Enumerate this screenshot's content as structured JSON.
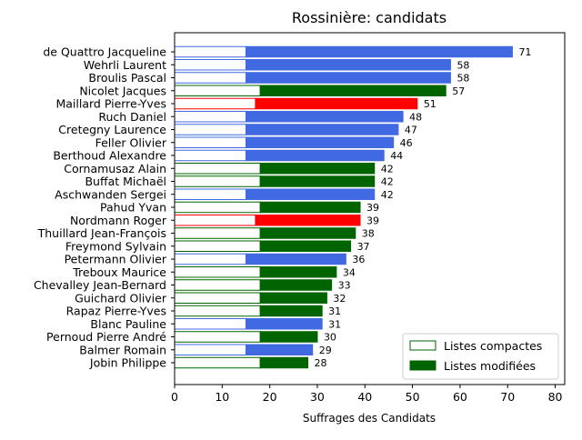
{
  "chart_data": {
    "type": "bar",
    "orientation": "horizontal",
    "stacked": true,
    "title": "Rossinière: candidats",
    "xlabel": "Suffrages des Candidats",
    "ylabel": "",
    "xlim": [
      0,
      82
    ],
    "xticks": [
      0,
      10,
      20,
      30,
      40,
      50,
      60,
      70,
      80
    ],
    "grid": false,
    "legend": {
      "position": "bottom-right",
      "entries": [
        {
          "label": "Listes compactes",
          "style": "outline",
          "color": "#006400"
        },
        {
          "label": "Listes modifiées",
          "style": "filled",
          "color": "#006400"
        }
      ]
    },
    "categories": [
      "de Quattro Jacqueline",
      "Wehrli Laurent",
      "Broulis Pascal",
      "Nicolet Jacques",
      "Maillard Pierre-Yves",
      "Ruch Daniel",
      "Cretegny Laurence",
      "Feller Olivier",
      "Berthoud Alexandre",
      "Cornamusaz Alain",
      "Buffat Michaël",
      "Aschwanden Sergei",
      "Pahud Yvan",
      "Nordmann Roger",
      "Thuillard Jean-François",
      "Freymond Sylvain",
      "Petermann Olivier",
      "Treboux Maurice",
      "Chevalley Jean-Bernard",
      "Guichard Olivier",
      "Rapaz Pierre-Yves",
      "Blanc Pauline",
      "Pernoud Pierre André",
      "Balmer Romain",
      "Jobin Philippe"
    ],
    "series": [
      {
        "name": "Listes compactes",
        "values": [
          15,
          15,
          15,
          18,
          17,
          15,
          15,
          15,
          15,
          18,
          18,
          15,
          18,
          17,
          18,
          18,
          15,
          18,
          18,
          18,
          18,
          15,
          18,
          15,
          18
        ]
      },
      {
        "name": "Listes modifiées",
        "values": [
          56,
          43,
          43,
          39,
          34,
          33,
          32,
          31,
          29,
          24,
          24,
          27,
          21,
          22,
          20,
          19,
          21,
          16,
          15,
          14,
          13,
          16,
          12,
          14,
          10
        ]
      }
    ],
    "totals": [
      71,
      58,
      58,
      57,
      51,
      48,
      47,
      46,
      44,
      42,
      42,
      42,
      39,
      39,
      38,
      37,
      36,
      34,
      33,
      32,
      31,
      31,
      30,
      29,
      28
    ],
    "colors": [
      "#4169e1",
      "#4169e1",
      "#4169e1",
      "#006400",
      "#ff0000",
      "#4169e1",
      "#4169e1",
      "#4169e1",
      "#4169e1",
      "#006400",
      "#006400",
      "#4169e1",
      "#006400",
      "#ff0000",
      "#006400",
      "#006400",
      "#4169e1",
      "#006400",
      "#006400",
      "#006400",
      "#006400",
      "#4169e1",
      "#006400",
      "#4169e1",
      "#006400"
    ]
  }
}
